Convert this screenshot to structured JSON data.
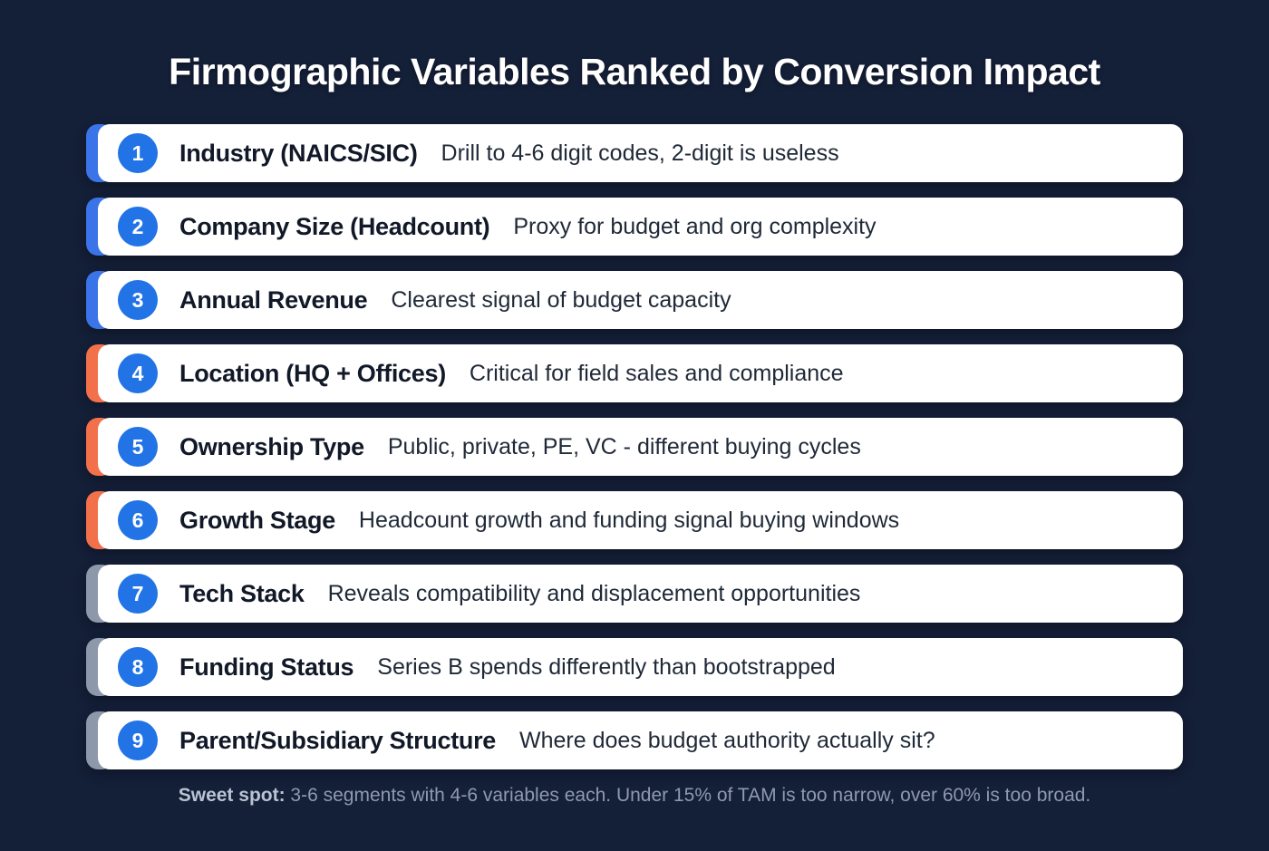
{
  "page": {
    "title": "Firmographic Variables Ranked by Conversion Impact",
    "footer_bold": "Sweet spot:",
    "footer_text": " 3-6 segments with 4-6 variables each. Under 15% of TAM is too narrow, over 60% is too broad."
  },
  "colors": {
    "background": "#141f38",
    "card": "#ffffff",
    "badge_blue": "#2173e6",
    "accent_blue": "#3b74e8",
    "accent_orange": "#f2714b",
    "accent_gray": "#8d99aa"
  },
  "rows": [
    {
      "rank": "1",
      "label": "Industry (NAICS/SIC)",
      "description": "Drill to 4-6 digit codes, 2-digit is useless",
      "accent_group": "blue"
    },
    {
      "rank": "2",
      "label": "Company Size (Headcount)",
      "description": "Proxy for budget and org complexity",
      "accent_group": "blue"
    },
    {
      "rank": "3",
      "label": "Annual Revenue",
      "description": "Clearest signal of budget capacity",
      "accent_group": "blue"
    },
    {
      "rank": "4",
      "label": "Location (HQ + Offices)",
      "description": "Critical for field sales and compliance",
      "accent_group": "orange"
    },
    {
      "rank": "5",
      "label": "Ownership Type",
      "description": "Public, private, PE, VC - different buying cycles",
      "accent_group": "orange"
    },
    {
      "rank": "6",
      "label": "Growth Stage",
      "description": "Headcount growth and funding signal buying windows",
      "accent_group": "orange"
    },
    {
      "rank": "7",
      "label": "Tech Stack",
      "description": "Reveals compatibility and displacement opportunities",
      "accent_group": "gray"
    },
    {
      "rank": "8",
      "label": "Funding Status",
      "description": "Series B spends differently than bootstrapped",
      "accent_group": "gray"
    },
    {
      "rank": "9",
      "label": "Parent/Subsidiary Structure",
      "description": "Where does budget authority actually sit?",
      "accent_group": "gray"
    }
  ]
}
